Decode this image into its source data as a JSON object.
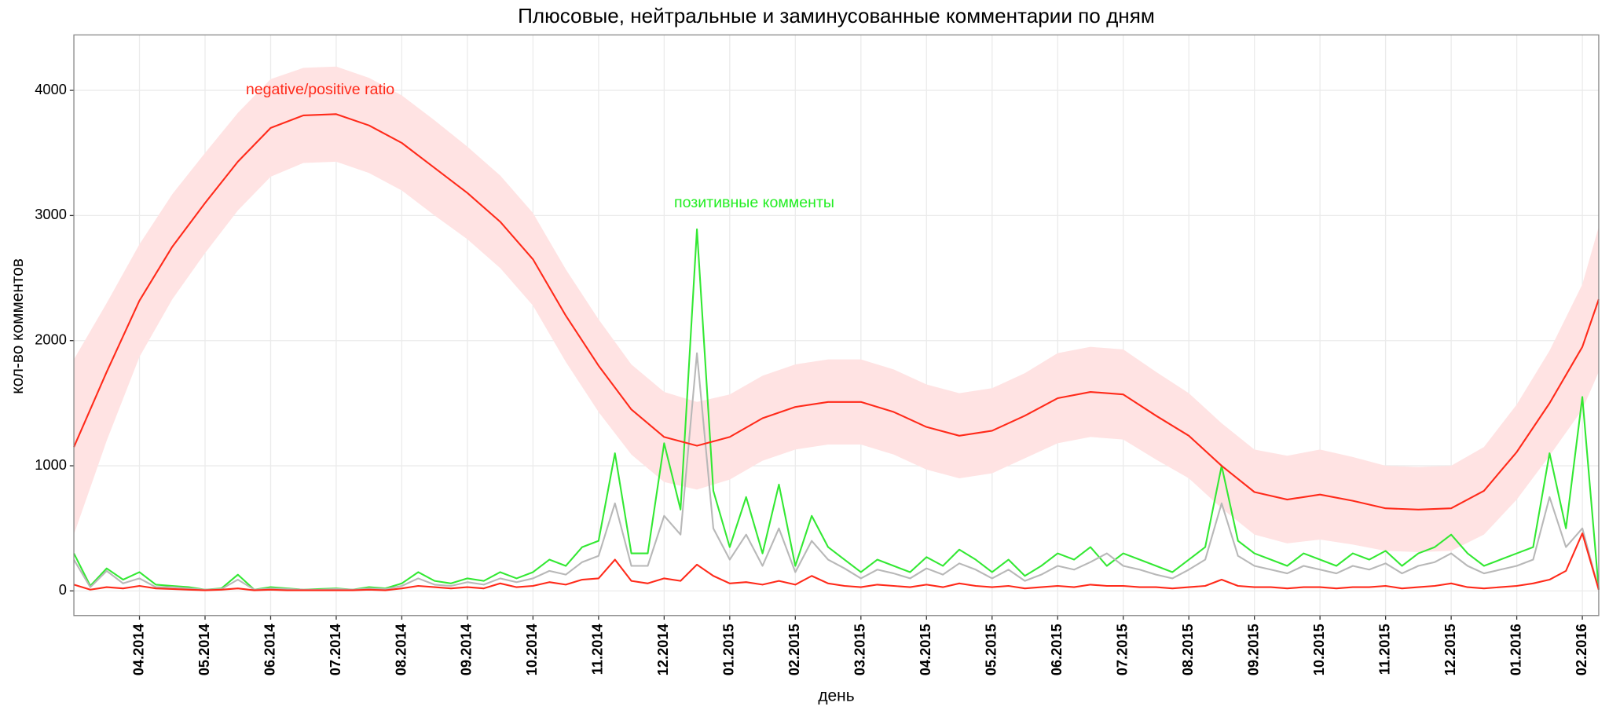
{
  "chart_data": {
    "type": "line",
    "title": "Плюсовые, нейтральные и заминусованные комментарии по дням",
    "x_label": "день",
    "y_label": "кол-во комментов",
    "grid": true,
    "xlim": [
      -1.0,
      22.25
    ],
    "xticks": [
      {
        "value": 0,
        "label": "04.2014"
      },
      {
        "value": 1,
        "label": "05.2014"
      },
      {
        "value": 2,
        "label": "06.2014"
      },
      {
        "value": 3,
        "label": "07.2014"
      },
      {
        "value": 4,
        "label": "08.2014"
      },
      {
        "value": 5,
        "label": "09.2014"
      },
      {
        "value": 6,
        "label": "10.2014"
      },
      {
        "value": 7,
        "label": "11.2014"
      },
      {
        "value": 8,
        "label": "12.2014"
      },
      {
        "value": 9,
        "label": "01.2015"
      },
      {
        "value": 10,
        "label": "02.2015"
      },
      {
        "value": 11,
        "label": "03.2015"
      },
      {
        "value": 12,
        "label": "04.2015"
      },
      {
        "value": 13,
        "label": "05.2015"
      },
      {
        "value": 14,
        "label": "06.2015"
      },
      {
        "value": 15,
        "label": "07.2015"
      },
      {
        "value": 16,
        "label": "08.2015"
      },
      {
        "value": 17,
        "label": "09.2015"
      },
      {
        "value": 18,
        "label": "10.2015"
      },
      {
        "value": 19,
        "label": "11.2015"
      },
      {
        "value": 20,
        "label": "12.2015"
      },
      {
        "value": 21,
        "label": "01.2016"
      },
      {
        "value": 22,
        "label": "02.2016"
      }
    ],
    "ylim": [
      -197,
      4443
    ],
    "yticks": [
      0,
      1000,
      2000,
      3000,
      4000
    ],
    "annotations": [
      {
        "text": "negative/positive ratio",
        "color": "#ff2a1a"
      },
      {
        "text": "позитивные комменты",
        "color": "#22ee22"
      }
    ],
    "x": [
      -1,
      -0.75,
      -0.5,
      -0.25,
      0,
      0.25,
      0.5,
      0.75,
      1,
      1.25,
      1.5,
      1.75,
      2,
      2.25,
      2.5,
      2.75,
      3,
      3.25,
      3.5,
      3.75,
      4,
      4.25,
      4.5,
      4.75,
      5,
      5.25,
      5.5,
      5.75,
      6,
      6.25,
      6.5,
      6.75,
      7,
      7.25,
      7.5,
      7.75,
      8,
      8.25,
      8.5,
      8.75,
      9,
      9.25,
      9.5,
      9.75,
      10,
      10.25,
      10.5,
      10.75,
      11,
      11.25,
      11.5,
      11.75,
      12,
      12.25,
      12.5,
      12.75,
      13,
      13.25,
      13.5,
      13.75,
      14,
      14.25,
      14.5,
      14.75,
      15,
      15.25,
      15.5,
      15.75,
      16,
      16.25,
      16.5,
      16.75,
      17,
      17.25,
      17.5,
      17.75,
      18,
      18.25,
      18.5,
      18.75,
      19,
      19.25,
      19.5,
      19.75,
      20,
      20.25,
      20.5,
      20.75,
      21,
      21.25,
      21.5,
      21.75,
      22,
      22.25
    ],
    "series": [
      {
        "color": "#ff2a1a",
        "fill": "#ffe3e3",
        "x": [
          -1,
          -0.5,
          0,
          0.5,
          1,
          1.5,
          2,
          2.5,
          3,
          3.5,
          4,
          4.5,
          5,
          5.5,
          6,
          6.5,
          7,
          7.5,
          8,
          8.5,
          9,
          9.5,
          10,
          10.5,
          11,
          11.5,
          12,
          12.5,
          13,
          13.5,
          14,
          14.5,
          15,
          15.5,
          16,
          16.5,
          17,
          17.5,
          18,
          18.5,
          19,
          19.5,
          20,
          20.5,
          21,
          21.5,
          22,
          22.25
        ],
        "values": [
          1150,
          1750,
          2320,
          2750,
          3100,
          3430,
          3700,
          3800,
          3810,
          3720,
          3580,
          3380,
          3180,
          2950,
          2650,
          2200,
          1800,
          1450,
          1230,
          1160,
          1230,
          1380,
          1470,
          1510,
          1510,
          1430,
          1310,
          1240,
          1280,
          1400,
          1540,
          1590,
          1570,
          1400,
          1240,
          1000,
          790,
          730,
          770,
          720,
          660,
          650,
          660,
          800,
          1110,
          1500,
          1950,
          2330
        ],
        "lower": [
          450,
          1200,
          1870,
          2330,
          2700,
          3040,
          3310,
          3420,
          3430,
          3340,
          3200,
          3000,
          2810,
          2580,
          2280,
          1830,
          1430,
          1090,
          870,
          810,
          890,
          1040,
          1130,
          1170,
          1170,
          1090,
          970,
          900,
          940,
          1060,
          1180,
          1230,
          1210,
          1050,
          900,
          660,
          450,
          380,
          410,
          370,
          320,
          310,
          320,
          450,
          730,
          1080,
          1450,
          1750
        ],
        "upper": [
          1850,
          2300,
          2770,
          3170,
          3500,
          3820,
          4090,
          4180,
          4190,
          4100,
          3960,
          3760,
          3550,
          3320,
          3020,
          2570,
          2170,
          1810,
          1590,
          1510,
          1570,
          1720,
          1810,
          1850,
          1850,
          1770,
          1650,
          1580,
          1620,
          1740,
          1900,
          1950,
          1930,
          1750,
          1580,
          1340,
          1130,
          1080,
          1130,
          1070,
          1000,
          990,
          1000,
          1150,
          1490,
          1920,
          2450,
          2910
        ]
      },
      {
        "color": "#33e833",
        "values": [
          300,
          40,
          180,
          90,
          150,
          50,
          40,
          30,
          10,
          20,
          130,
          10,
          30,
          20,
          10,
          15,
          20,
          10,
          30,
          20,
          60,
          150,
          80,
          60,
          100,
          80,
          150,
          100,
          150,
          250,
          200,
          350,
          400,
          1100,
          300,
          300,
          1180,
          650,
          2890,
          800,
          350,
          750,
          300,
          850,
          200,
          600,
          350,
          250,
          150,
          250,
          200,
          150,
          270,
          200,
          330,
          250,
          150,
          250,
          120,
          200,
          300,
          250,
          350,
          200,
          300,
          250,
          200,
          150,
          250,
          350,
          1000,
          400,
          300,
          250,
          200,
          300,
          250,
          200,
          300,
          250,
          320,
          200,
          300,
          350,
          450,
          300,
          200,
          250,
          300,
          350,
          1100,
          500,
          1550,
          10
        ]
      },
      {
        "color": "#b8b8b8",
        "values": [
          250,
          30,
          160,
          60,
          100,
          30,
          30,
          20,
          10,
          15,
          90,
          10,
          20,
          15,
          10,
          10,
          15,
          10,
          20,
          15,
          40,
          100,
          50,
          40,
          70,
          50,
          100,
          70,
          100,
          160,
          130,
          230,
          280,
          700,
          200,
          200,
          600,
          450,
          1900,
          500,
          250,
          450,
          200,
          500,
          150,
          400,
          250,
          180,
          100,
          170,
          140,
          100,
          180,
          130,
          220,
          170,
          100,
          170,
          80,
          130,
          200,
          170,
          230,
          300,
          200,
          170,
          130,
          100,
          170,
          250,
          700,
          280,
          200,
          170,
          140,
          200,
          170,
          140,
          200,
          170,
          220,
          140,
          200,
          230,
          300,
          200,
          140,
          170,
          200,
          250,
          750,
          350,
          500,
          10
        ]
      },
      {
        "color": "#ff2a1a",
        "values": [
          50,
          10,
          30,
          20,
          40,
          20,
          15,
          10,
          5,
          10,
          20,
          5,
          10,
          5,
          5,
          5,
          5,
          5,
          10,
          5,
          20,
          40,
          30,
          20,
          30,
          20,
          60,
          30,
          40,
          70,
          50,
          90,
          100,
          250,
          80,
          60,
          100,
          80,
          210,
          120,
          60,
          70,
          50,
          80,
          50,
          120,
          60,
          40,
          30,
          50,
          40,
          30,
          50,
          30,
          60,
          40,
          30,
          40,
          20,
          30,
          40,
          30,
          50,
          40,
          40,
          30,
          30,
          20,
          30,
          40,
          90,
          40,
          30,
          30,
          20,
          30,
          30,
          20,
          30,
          30,
          40,
          20,
          30,
          40,
          60,
          30,
          20,
          30,
          40,
          60,
          90,
          160,
          460,
          10
        ]
      }
    ]
  }
}
